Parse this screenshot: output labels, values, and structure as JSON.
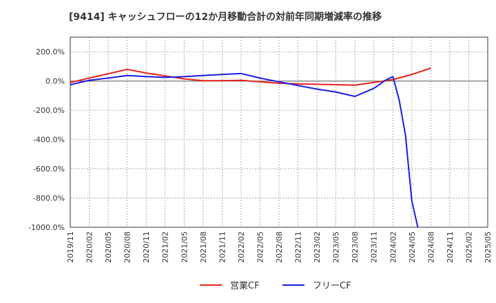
{
  "chart_data": {
    "type": "line",
    "title": "[9414]  キャッシュフローの12か月移動合計の対前年同期増減率の推移",
    "xlabel": "",
    "ylabel": "",
    "ylim": [
      -1000,
      300
    ],
    "y_ticks": [
      200,
      0,
      -200,
      -400,
      -600,
      -800,
      -1000
    ],
    "y_tick_labels": [
      "200.0%",
      "0.0%",
      "-200.0%",
      "-400.0%",
      "-600.0%",
      "-800.0%",
      "-1000.0%"
    ],
    "x_tick_labels": [
      "2019/11",
      "2020/02",
      "2020/05",
      "2020/08",
      "2020/11",
      "2021/02",
      "2021/05",
      "2021/08",
      "2021/11",
      "2022/02",
      "2022/05",
      "2022/08",
      "2022/11",
      "2023/02",
      "2023/05",
      "2023/08",
      "2023/11",
      "2024/02",
      "2024/05",
      "2024/08",
      "2024/11",
      "2025/02",
      "2025/05"
    ],
    "legend": [
      "営業CF",
      "フリーCF"
    ],
    "series": [
      {
        "name": "営業CF",
        "color": "#e8201a",
        "points": [
          [
            "2019/11",
            -10
          ],
          [
            "2020/02",
            20
          ],
          [
            "2020/05",
            50
          ],
          [
            "2020/08",
            80
          ],
          [
            "2020/11",
            55
          ],
          [
            "2021/02",
            35
          ],
          [
            "2021/05",
            15
          ],
          [
            "2021/08",
            2
          ],
          [
            "2021/11",
            3
          ],
          [
            "2022/02",
            5
          ],
          [
            "2022/05",
            -5
          ],
          [
            "2022/08",
            -15
          ],
          [
            "2022/11",
            -20
          ],
          [
            "2023/02",
            -22
          ],
          [
            "2023/05",
            -25
          ],
          [
            "2023/08",
            -28
          ],
          [
            "2023/11",
            -10
          ],
          [
            "2024/02",
            10
          ],
          [
            "2024/05",
            45
          ],
          [
            "2024/08",
            88
          ]
        ]
      },
      {
        "name": "フリーCF",
        "color": "#1a1ae6",
        "points": [
          [
            "2019/11",
            -25
          ],
          [
            "2020/02",
            5
          ],
          [
            "2020/05",
            20
          ],
          [
            "2020/08",
            38
          ],
          [
            "2020/11",
            30
          ],
          [
            "2021/02",
            25
          ],
          [
            "2021/05",
            30
          ],
          [
            "2021/08",
            38
          ],
          [
            "2021/11",
            45
          ],
          [
            "2022/02",
            52
          ],
          [
            "2022/05",
            20
          ],
          [
            "2022/08",
            -5
          ],
          [
            "2022/11",
            -30
          ],
          [
            "2023/02",
            -55
          ],
          [
            "2023/05",
            -75
          ],
          [
            "2023/08",
            -105
          ],
          [
            "2023/11",
            -50
          ],
          [
            "2024/01",
            10
          ],
          [
            "2024/02",
            30
          ],
          [
            "2024/03",
            -130
          ],
          [
            "2024/04",
            -370
          ],
          [
            "2024/05",
            -820
          ],
          [
            "2024/06",
            -1010
          ]
        ]
      }
    ]
  }
}
